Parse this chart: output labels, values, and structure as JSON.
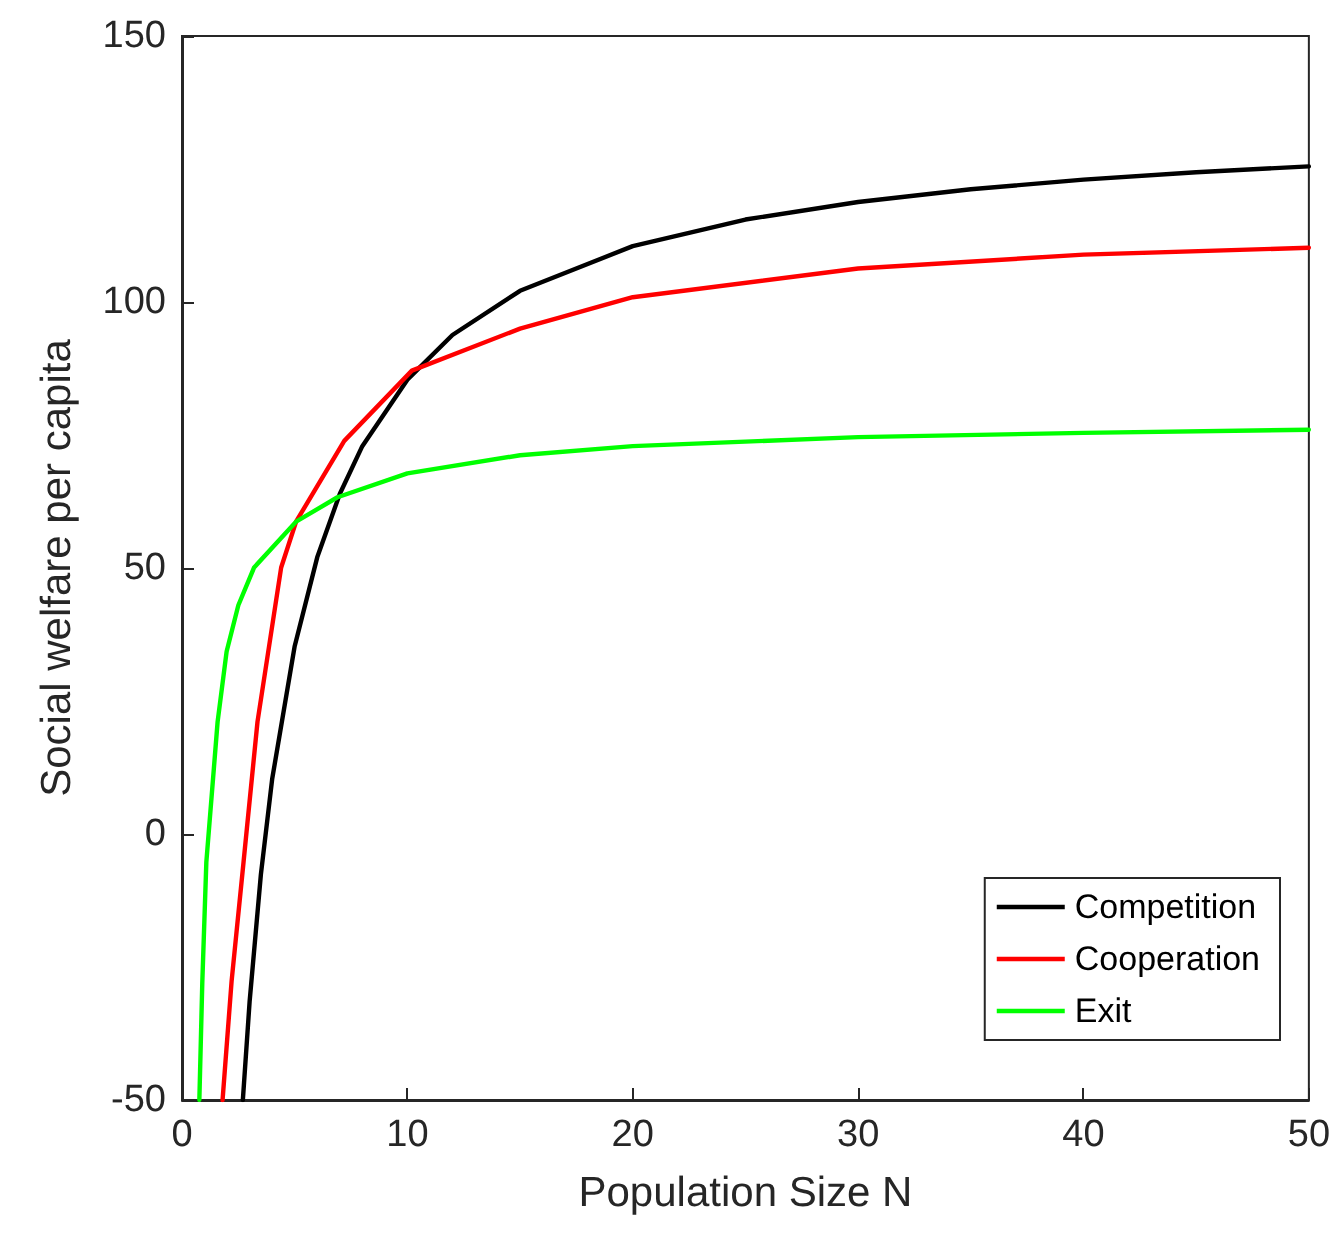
{
  "chart_data": {
    "type": "line",
    "xlabel": "Population Size N",
    "ylabel": "Social welfare per capita",
    "xlim": [
      0,
      50
    ],
    "ylim": [
      -50,
      150
    ],
    "xticks": [
      0,
      10,
      20,
      30,
      40,
      50
    ],
    "yticks": [
      -50,
      0,
      50,
      100,
      150
    ],
    "grid": false,
    "legend": "bottom right",
    "marker": "none",
    "line_style": "solid",
    "series": [
      {
        "name": "Competition",
        "color": "#000000",
        "x": [
          2.7,
          3,
          3.5,
          4,
          5,
          6,
          7,
          8,
          10,
          12,
          15,
          20,
          25,
          30,
          35,
          40,
          45,
          50
        ],
        "values": [
          -50.0,
          -31.5,
          -7.6,
          10.3,
          35.3,
          52.0,
          63.9,
          72.9,
          85.4,
          93.8,
          102.1,
          110.5,
          115.5,
          118.8,
          121.2,
          123.0,
          124.4,
          125.5
        ]
      },
      {
        "name": "Cooperation",
        "color": "#ff0000",
        "x": [
          1.8,
          2.2,
          2.73,
          3.35,
          4.4,
          5.06,
          7.2,
          10.2,
          15,
          20,
          30,
          40,
          50
        ],
        "values": [
          -50,
          -27.7,
          -5.3,
          21.1,
          50.1,
          58.7,
          73.9,
          87.1,
          95.0,
          100.9,
          106.3,
          108.9,
          110.2
        ]
      },
      {
        "name": "Exit",
        "color": "#00ff00",
        "x": [
          0.77,
          0.9,
          1.08,
          1.58,
          1.98,
          2.5,
          3.2,
          5.06,
          6.9,
          10,
          15,
          20,
          30,
          40,
          50
        ],
        "values": [
          -50,
          -28,
          -5.3,
          21.1,
          34.3,
          43,
          50.1,
          58.7,
          63.3,
          67.8,
          71.2,
          72.9,
          74.6,
          75.4,
          76.0
        ]
      }
    ]
  }
}
